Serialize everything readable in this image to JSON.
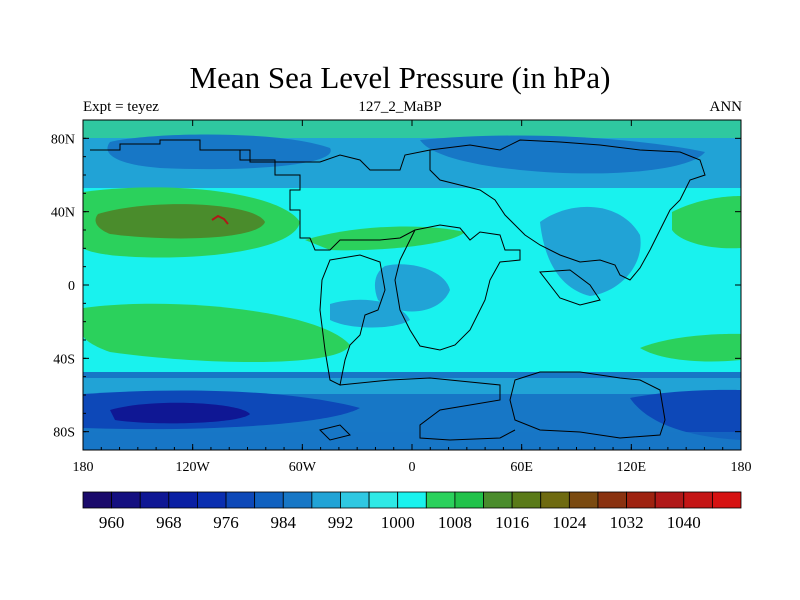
{
  "chart_data": {
    "type": "heatmap",
    "title": "Mean Sea Level Pressure (in hPa)",
    "subtitle_left": "Expt = teyez",
    "subtitle_center": "127_2_MaBP",
    "subtitle_right": "ANN",
    "xlim": [
      -180,
      180
    ],
    "ylim": [
      -90,
      90
    ],
    "x_ticks": [
      {
        "value": -180,
        "label": "180"
      },
      {
        "value": -120,
        "label": "120W"
      },
      {
        "value": -60,
        "label": "60W"
      },
      {
        "value": 0,
        "label": "0"
      },
      {
        "value": 60,
        "label": "60E"
      },
      {
        "value": 120,
        "label": "120E"
      },
      {
        "value": 180,
        "label": "180"
      }
    ],
    "y_ticks": [
      {
        "value": 80,
        "label": "80N"
      },
      {
        "value": 40,
        "label": "40N"
      },
      {
        "value": 0,
        "label": "0"
      },
      {
        "value": -40,
        "label": "40S"
      },
      {
        "value": -80,
        "label": "80S"
      }
    ],
    "colorbar": {
      "levels": [
        956,
        960,
        964,
        968,
        972,
        976,
        980,
        984,
        988,
        992,
        996,
        1000,
        1004,
        1008,
        1012,
        1016,
        1020,
        1024,
        1028,
        1032,
        1036,
        1040,
        1044
      ],
      "colors": [
        "#1a0a6b",
        "#140f80",
        "#0f1794",
        "#0a1fa3",
        "#0a2eb0",
        "#0d48b8",
        "#1061c0",
        "#1777c6",
        "#21a3d6",
        "#2fc8e2",
        "#2ee9e6",
        "#19f2ee",
        "#2bd15c",
        "#21c24a",
        "#4a8c2c",
        "#5a7a18",
        "#6e6a10",
        "#7a4a10",
        "#8a3210",
        "#9e2210",
        "#b01818",
        "#c41515",
        "#d61212"
      ],
      "labels": [
        "960",
        "968",
        "976",
        "984",
        "992",
        "1000",
        "1008",
        "1016",
        "1024",
        "1032",
        "1040"
      ]
    }
  }
}
